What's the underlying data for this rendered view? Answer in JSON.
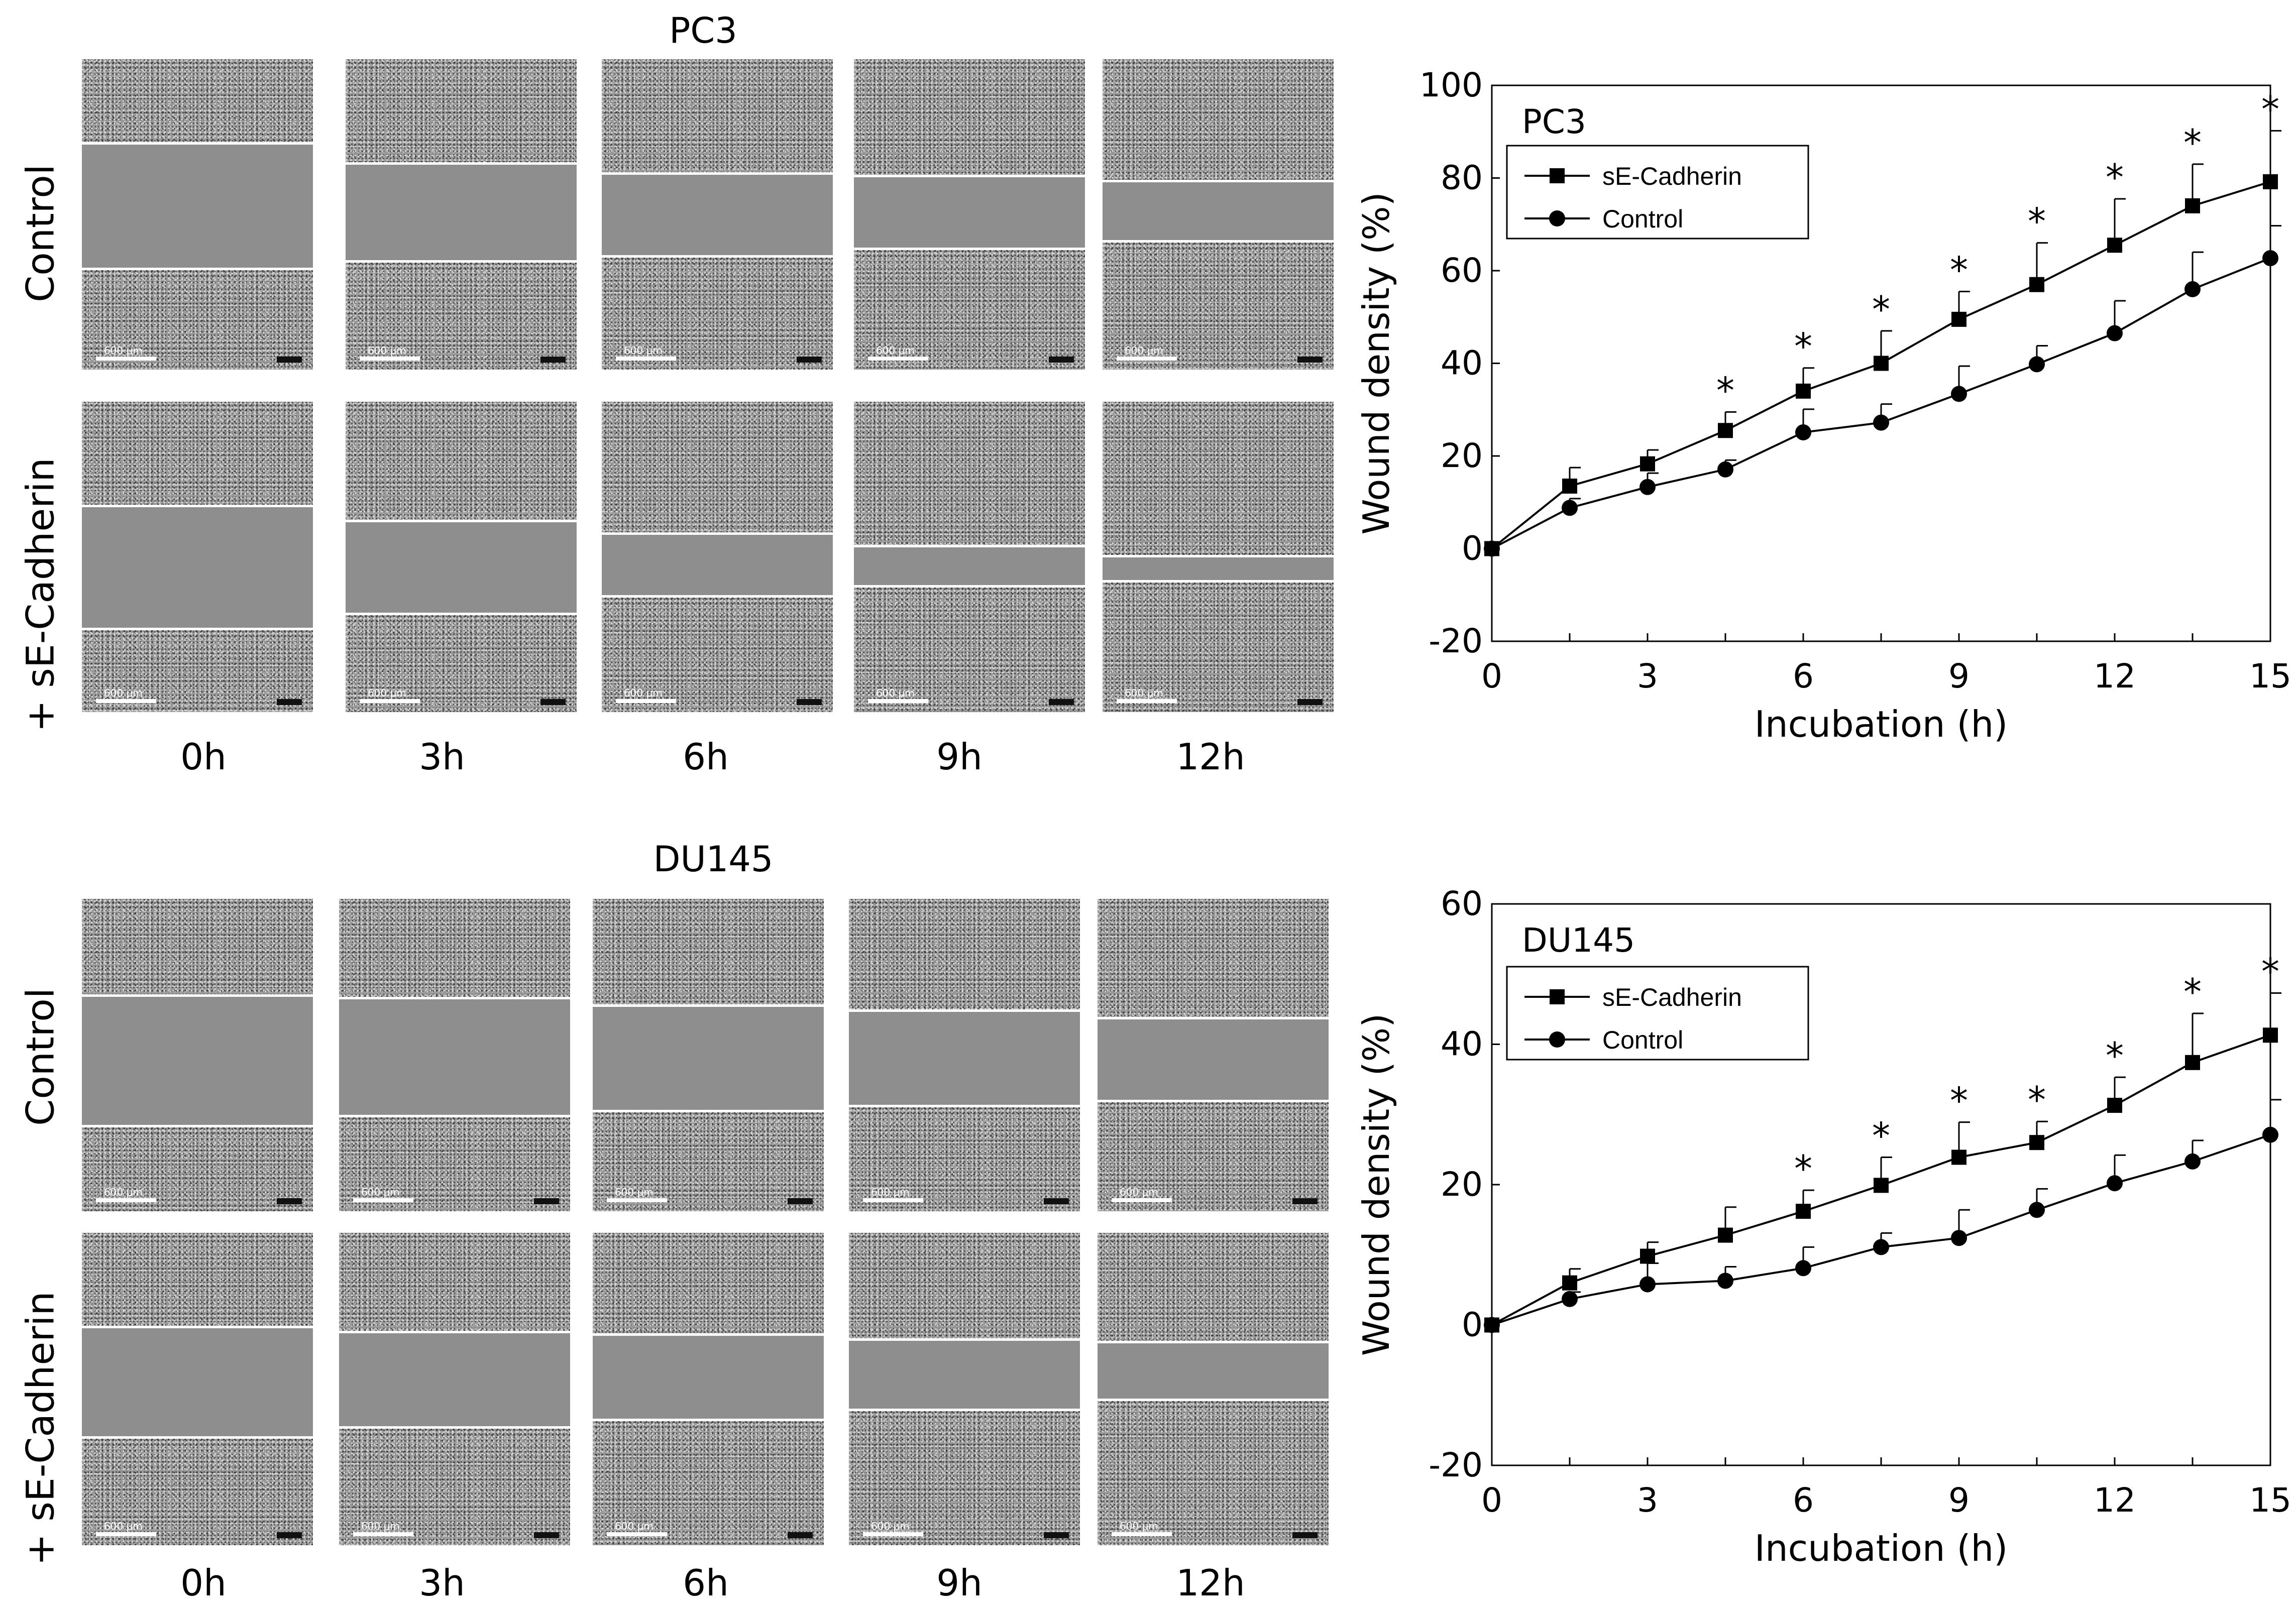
{
  "panels": [
    {
      "cell_line": "PC3",
      "row_labels": [
        "Control",
        "+ sE-Cadherin"
      ],
      "time_labels": [
        "0h",
        "3h",
        "6h",
        "9h",
        "12h"
      ],
      "scale_bar_label": "600 μm"
    },
    {
      "cell_line": "DU145",
      "row_labels": [
        "Control",
        "+ sE-Cadherin"
      ],
      "time_labels": [
        "0h",
        "3h",
        "6h",
        "9h",
        "12h"
      ],
      "scale_bar_label": "600 μm"
    }
  ],
  "chart_data": [
    {
      "type": "line",
      "title": "PC3",
      "xlabel": "Incubation (h)",
      "ylabel": "Wound density (%)",
      "xlim": [
        0,
        15
      ],
      "ylim": [
        -20,
        100
      ],
      "xticks": [
        0,
        3,
        6,
        9,
        12,
        15
      ],
      "yticks": [
        -20,
        0,
        20,
        40,
        60,
        80,
        100
      ],
      "legend_position": "top-left",
      "x": [
        0,
        1.5,
        3,
        4.5,
        6,
        7.5,
        9,
        10.5,
        12,
        13.5,
        15
      ],
      "series": [
        {
          "name": "sE-Cadherin",
          "marker": "square",
          "values": [
            0,
            13.5,
            18.3,
            25.5,
            34,
            40,
            49.5,
            57,
            65.5,
            74,
            79.2
          ],
          "error": [
            0,
            4,
            3,
            4,
            5,
            7,
            6,
            9,
            10,
            9,
            11
          ]
        },
        {
          "name": "Control",
          "marker": "circle",
          "values": [
            0,
            8.8,
            13.3,
            17.1,
            25.1,
            27.2,
            33.4,
            39.8,
            46.5,
            56,
            62.7
          ],
          "error": [
            0,
            2,
            3,
            2,
            5,
            4,
            6,
            4,
            7,
            8,
            7
          ]
        }
      ],
      "significance_marker": "*",
      "significant_x": [
        4.5,
        6,
        7.5,
        9,
        10.5,
        12,
        13.5,
        15
      ]
    },
    {
      "type": "line",
      "title": "DU145",
      "xlabel": "Incubation (h)",
      "ylabel": "Wound density (%)",
      "xlim": [
        0,
        15
      ],
      "ylim": [
        -20,
        60
      ],
      "xticks": [
        0,
        3,
        6,
        9,
        12,
        15
      ],
      "yticks": [
        -20,
        0,
        20,
        40,
        60
      ],
      "legend_position": "top-left",
      "x": [
        0,
        1.5,
        3,
        4.5,
        6,
        7.5,
        9,
        10.5,
        12,
        13.5,
        15
      ],
      "series": [
        {
          "name": "sE-Cadherin",
          "marker": "square",
          "values": [
            0,
            6,
            9.8,
            12.8,
            16.2,
            19.9,
            23.9,
            26,
            31.3,
            37.4,
            41.3
          ],
          "error": [
            0,
            2,
            2,
            4,
            3,
            4,
            5,
            3,
            4,
            7,
            6
          ]
        },
        {
          "name": "Control",
          "marker": "circle",
          "values": [
            0,
            3.7,
            5.8,
            6.3,
            8.1,
            11.1,
            12.4,
            16.4,
            20.2,
            23.3,
            27.1
          ],
          "error": [
            0,
            1,
            3,
            2,
            3,
            2,
            4,
            3,
            4,
            3,
            5
          ]
        }
      ],
      "significance_marker": "*",
      "significant_x": [
        6,
        7.5,
        9,
        10.5,
        12,
        13.5,
        15
      ]
    }
  ]
}
